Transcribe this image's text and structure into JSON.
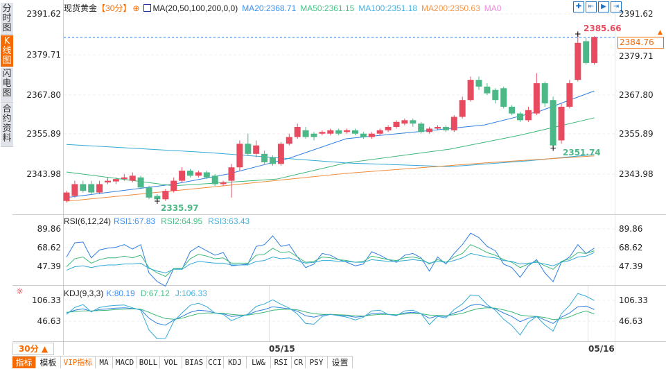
{
  "sidebar": {
    "tabs": [
      {
        "label": "分时图"
      },
      {
        "label": "K线图",
        "active": true
      },
      {
        "label": "闪电图"
      },
      {
        "label": "合约资料"
      }
    ]
  },
  "header": {
    "symbol": "现货黄金",
    "period": "【30分】",
    "ma_label": "MA(20,50,100,200,0,0)",
    "ma20": "MA20:2368.71",
    "ma50": "MA50:2361.15",
    "ma100": "MA100:2351.18",
    "ma200": "MA200:2350.63",
    "ma0": "MA0"
  },
  "toolbar_icons": [
    "crosshair-icon",
    "zoom-in-icon",
    "next-icon",
    "exit-icon"
  ],
  "price_axis": {
    "labels": [
      "2391.62",
      "2379.71",
      "2367.80",
      "2355.89",
      "2343.98"
    ]
  },
  "current_price": "2384.76",
  "annotations": {
    "high": "2385.66",
    "low_mid": "2351.74",
    "low": "2335.97"
  },
  "rsi": {
    "label": "RSI(6,12,24)",
    "rsi1": "RSI1:67.83",
    "rsi2": "RSI2:64.95",
    "rsi3": "RSI3:63.43",
    "axis": [
      "89.86",
      "68.62",
      "47.39"
    ]
  },
  "kdj": {
    "label": "KDJ(9,3,3)",
    "k": "K:80.19",
    "d": "D:67.12",
    "j": "J:106.33",
    "axis": [
      "106.33",
      "46.63"
    ]
  },
  "dates": [
    "05/15",
    "05/16"
  ],
  "period_select": "30分 ▲",
  "bottom_tabs": [
    "指标",
    "模板",
    "VIP指标",
    "MA",
    "MACD",
    "BOLL",
    "VOL",
    "BIAS",
    "CCI",
    "KDJ",
    "LW&",
    "RSI",
    "CR",
    "PSY",
    "设置"
  ],
  "colors": {
    "up": "#e84a5f",
    "down": "#4db887",
    "ma20": "#2f7fe0",
    "ma50": "#3cb878",
    "ma100": "#33a9d8",
    "ma200": "#f08a3a",
    "accent": "#f66a00"
  },
  "chart_data": {
    "type": "candlestick",
    "ylim": [
      2331,
      2393
    ],
    "candles": [
      [
        2336,
        2338.5,
        2339,
        2335.5
      ],
      [
        2337.5,
        2341,
        2342,
        2337
      ],
      [
        2341,
        2339,
        2342,
        2338.5
      ],
      [
        2341,
        2338.5,
        2342,
        2338
      ],
      [
        2338.5,
        2341,
        2342,
        2338
      ],
      [
        2341.5,
        2342,
        2343,
        2341
      ],
      [
        2341.8,
        2342.5,
        2343,
        2341
      ],
      [
        2342.5,
        2343,
        2344,
        2342
      ],
      [
        2342,
        2343.5,
        2344.5,
        2341.5
      ],
      [
        2343,
        2340,
        2343.5,
        2339.5
      ],
      [
        2340,
        2337,
        2340.5,
        2336.5
      ],
      [
        2337.5,
        2336.5,
        2338,
        2335.97
      ],
      [
        2336.5,
        2339,
        2339.5,
        2336
      ],
      [
        2339,
        2342,
        2343,
        2338.5
      ],
      [
        2342,
        2345,
        2346,
        2341.5
      ],
      [
        2345,
        2343.5,
        2345.5,
        2343
      ],
      [
        2343.5,
        2344.5,
        2345,
        2343
      ],
      [
        2344.5,
        2343,
        2345,
        2342.5
      ],
      [
        2343.5,
        2341,
        2344,
        2340.5
      ],
      [
        2341,
        2341.5,
        2342,
        2340.5
      ],
      [
        2342,
        2346,
        2347,
        2337
      ],
      [
        2346,
        2353,
        2354,
        2345
      ],
      [
        2353,
        2350,
        2356,
        2349.5
      ],
      [
        2350,
        2352.5,
        2354,
        2349
      ],
      [
        2350,
        2347.5,
        2351,
        2347
      ],
      [
        2349,
        2347,
        2349.5,
        2346.5
      ],
      [
        2347,
        2353,
        2353.5,
        2346.5
      ],
      [
        2353,
        2355,
        2356,
        2352.5
      ],
      [
        2355,
        2358,
        2359,
        2354.5
      ],
      [
        2357,
        2355,
        2358,
        2354.5
      ],
      [
        2356,
        2355,
        2356.5,
        2354
      ],
      [
        2356,
        2356.5,
        2357,
        2355.5
      ],
      [
        2356,
        2357,
        2357.5,
        2355.5
      ],
      [
        2357,
        2356,
        2357.5,
        2355.5
      ],
      [
        2356.5,
        2357,
        2357.5,
        2356
      ],
      [
        2357,
        2356,
        2357.5,
        2355.5
      ],
      [
        2356,
        2355,
        2356.5,
        2354.5
      ],
      [
        2355,
        2356,
        2356.5,
        2354.5
      ],
      [
        2356,
        2357,
        2357.5,
        2355.5
      ],
      [
        2357,
        2358,
        2358.5,
        2356.5
      ],
      [
        2358,
        2359.5,
        2360,
        2357.5
      ],
      [
        2359,
        2360,
        2360.5,
        2358.5
      ],
      [
        2360,
        2359,
        2360.5,
        2358
      ],
      [
        2359,
        2356.5,
        2359.5,
        2356
      ],
      [
        2356.5,
        2357.5,
        2358,
        2356
      ],
      [
        2357.5,
        2358,
        2358.5,
        2357
      ],
      [
        2358,
        2357,
        2358.5,
        2356.5
      ],
      [
        2357,
        2361,
        2361.5,
        2356.5
      ],
      [
        2361,
        2366,
        2367,
        2360.5
      ],
      [
        2366,
        2372,
        2373,
        2365.5
      ],
      [
        2372,
        2370,
        2373,
        2369
      ],
      [
        2370,
        2368,
        2371,
        2367.5
      ],
      [
        2369,
        2366,
        2369.5,
        2365
      ],
      [
        2369.5,
        2364,
        2370,
        2363.5
      ],
      [
        2364,
        2362,
        2364.5,
        2361.5
      ],
      [
        2362,
        2360,
        2362.5,
        2359.5
      ],
      [
        2360,
        2363,
        2364,
        2359.5
      ],
      [
        2362,
        2371,
        2374,
        2361.5
      ],
      [
        2371,
        2365,
        2371.5,
        2364
      ],
      [
        2366,
        2352.5,
        2367,
        2351.74
      ],
      [
        2354,
        2364,
        2365,
        2353
      ],
      [
        2364,
        2371,
        2372,
        2363.5
      ],
      [
        2372,
        2383,
        2385.66,
        2371.5
      ],
      [
        2383.5,
        2377,
        2384.5,
        2376.5
      ],
      [
        2377,
        2384.76,
        2385,
        2376.5
      ]
    ],
    "ma": [
      {
        "name": "MA20",
        "points": [
          [
            0,
            2337
          ],
          [
            13,
            2341
          ],
          [
            19.6,
            2344
          ],
          [
            27,
            2348.7
          ],
          [
            33.9,
            2354.5
          ],
          [
            42.3,
            2356.5
          ],
          [
            50.7,
            2358.6
          ],
          [
            57.4,
            2362.7
          ],
          [
            64,
            2368.7
          ]
        ]
      },
      {
        "name": "MA50",
        "points": [
          [
            0,
            2344.6
          ],
          [
            13,
            2340.5
          ],
          [
            25.5,
            2342.5
          ],
          [
            33.9,
            2347.3
          ],
          [
            46.5,
            2351.4
          ],
          [
            54.9,
            2355.5
          ],
          [
            64,
            2360.7
          ]
        ]
      },
      {
        "name": "MA100",
        "points": [
          [
            0,
            2352.8
          ],
          [
            17.1,
            2350.4
          ],
          [
            33.9,
            2347.3
          ],
          [
            46.5,
            2346.2
          ],
          [
            55.8,
            2347.9
          ],
          [
            64,
            2349.8
          ]
        ]
      },
      {
        "name": "MA200",
        "points": [
          [
            0,
            2335.9
          ],
          [
            17.1,
            2340
          ],
          [
            33.9,
            2344.2
          ],
          [
            50.7,
            2347.3
          ],
          [
            64,
            2349.4
          ]
        ]
      }
    ],
    "rsi_series": {
      "RSI1": [
        58,
        74,
        75,
        57,
        66,
        68,
        69,
        72,
        67,
        72,
        40,
        30,
        25,
        45,
        44,
        64,
        70,
        65,
        60,
        63,
        48,
        49,
        50,
        70,
        72,
        82,
        70,
        72,
        58,
        46,
        50,
        62,
        60,
        55,
        52,
        48,
        50,
        64,
        60,
        55,
        52,
        60,
        62,
        57,
        42,
        58,
        50,
        62,
        72,
        85,
        80,
        70,
        65,
        50,
        46,
        35,
        48,
        55,
        40,
        30,
        52,
        58,
        72,
        62,
        68
      ],
      "RSI2": [
        47,
        56,
        58,
        51,
        55,
        57,
        57,
        59,
        57,
        60,
        46,
        40,
        36,
        45,
        45,
        56,
        61,
        59,
        56,
        57,
        51,
        51,
        51,
        60,
        61,
        68,
        63,
        64,
        58,
        52,
        53,
        58,
        57,
        55,
        54,
        52,
        53,
        59,
        57,
        55,
        54,
        57,
        58,
        56,
        50,
        55,
        52,
        58,
        62,
        72,
        68,
        63,
        60,
        55,
        52,
        46,
        50,
        53,
        48,
        44,
        53,
        56,
        63,
        62,
        65
      ],
      "RSI3": [
        43,
        47,
        48,
        46,
        48,
        49,
        49,
        50,
        50,
        51,
        45,
        42,
        40,
        44,
        44,
        50,
        53,
        52,
        51,
        51,
        49,
        49,
        49,
        53,
        54,
        58,
        56,
        57,
        54,
        51,
        52,
        54,
        54,
        53,
        53,
        52,
        52,
        55,
        54,
        53,
        53,
        54,
        55,
        54,
        51,
        53,
        52,
        54,
        57,
        62,
        60,
        58,
        57,
        54,
        53,
        50,
        51,
        52,
        50,
        48,
        52,
        54,
        58,
        59,
        63
      ]
    },
    "kdj_series": {
      "K": [
        70,
        78,
        82,
        75,
        80,
        82,
        84,
        85,
        83,
        80,
        55,
        40,
        35,
        50,
        60,
        72,
        78,
        76,
        70,
        68,
        60,
        62,
        65,
        75,
        80,
        88,
        85,
        82,
        75,
        62,
        58,
        64,
        66,
        64,
        62,
        58,
        60,
        68,
        70,
        66,
        64,
        70,
        72,
        68,
        55,
        62,
        60,
        70,
        78,
        92,
        95,
        88,
        82,
        70,
        60,
        45,
        55,
        60,
        50,
        40,
        58,
        70,
        88,
        90,
        80
      ],
      "D": [
        72,
        74,
        76,
        76,
        77,
        78,
        80,
        81,
        82,
        81,
        72,
        62,
        54,
        52,
        55,
        62,
        68,
        70,
        70,
        69,
        66,
        64,
        64,
        68,
        72,
        78,
        80,
        81,
        79,
        73,
        68,
        66,
        66,
        65,
        64,
        62,
        61,
        64,
        66,
        66,
        65,
        67,
        69,
        68,
        64,
        63,
        62,
        65,
        69,
        77,
        83,
        85,
        84,
        79,
        73,
        64,
        61,
        60,
        57,
        51,
        53,
        59,
        69,
        76,
        67
      ],
      "J": [
        66,
        86,
        94,
        73,
        86,
        90,
        92,
        93,
        85,
        78,
        21,
        -4,
        -3,
        46,
        70,
        92,
        98,
        88,
        70,
        66,
        48,
        58,
        67,
        89,
        96,
        108,
        95,
        84,
        67,
        40,
        38,
        60,
        66,
        62,
        58,
        50,
        58,
        76,
        78,
        66,
        62,
        76,
        78,
        68,
        37,
        60,
        56,
        80,
        96,
        122,
        119,
        94,
        78,
        52,
        34,
        7,
        43,
        60,
        36,
        18,
        68,
        92,
        126,
        118,
        106
      ]
    }
  }
}
